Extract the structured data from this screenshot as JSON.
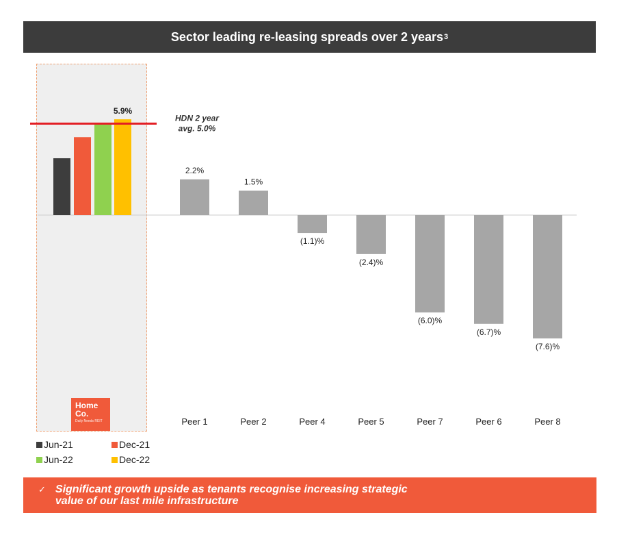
{
  "title": "Sector leading re-leasing spreads over 2 years",
  "title_superscript": "3",
  "logo": {
    "line1": "Home",
    "line2": "Co.",
    "tagline": "Daily Needs REIT"
  },
  "colors": {
    "jun21": "#3d3d3d",
    "dec21": "#f05a3a",
    "jun22": "#8fd14f",
    "dec22": "#ffc000",
    "peer": "#a6a6a6",
    "avg_line": "#e31e24",
    "accent": "#f05a3a"
  },
  "chart_data": {
    "type": "bar",
    "hdn": {
      "series": [
        {
          "name": "Jun-21",
          "value": 3.5,
          "color": "#3d3d3d"
        },
        {
          "name": "Dec-21",
          "value": 4.8,
          "color": "#f05a3a"
        },
        {
          "name": "Jun-22",
          "value": 5.6,
          "color": "#8fd14f"
        },
        {
          "name": "Dec-22",
          "value": 5.9,
          "color": "#ffc000",
          "label": "5.9%"
        }
      ],
      "average": 5.0,
      "average_label_line1": "HDN 2 year",
      "average_label_line2": "avg. 5.0%"
    },
    "categories": [
      "Peer 1",
      "Peer 2",
      "Peer 4",
      "Peer 5",
      "Peer 7",
      "Peer 6",
      "Peer 8"
    ],
    "values": [
      2.2,
      1.5,
      -1.1,
      -2.4,
      -6.0,
      -6.7,
      -7.6
    ],
    "labels": [
      "2.2%",
      "1.5%",
      "(1.1)%",
      "(2.4)%",
      "(6.0)%",
      "(6.7)%",
      "(7.6)%"
    ],
    "unit": "%"
  },
  "legend": [
    {
      "label": "Jun-21",
      "color": "#3d3d3d"
    },
    {
      "label": "Dec-21",
      "color": "#f05a3a"
    },
    {
      "label": "Jun-22",
      "color": "#8fd14f"
    },
    {
      "label": "Dec-22",
      "color": "#ffc000"
    }
  ],
  "footer": {
    "check": "✓",
    "line1": "Significant growth upside as tenants recognise increasing strategic",
    "line2": "value of our last mile infrastructure"
  }
}
